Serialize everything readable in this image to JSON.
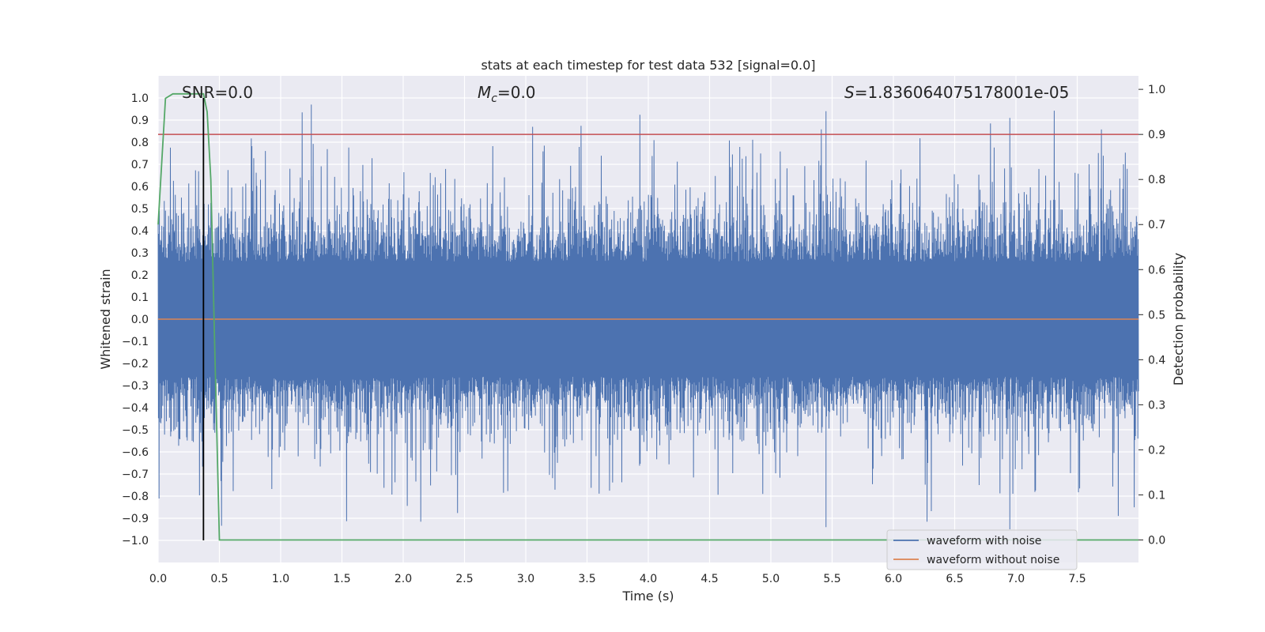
{
  "chart_data": {
    "type": "line",
    "title": "stats at each timestep for test data 532 [signal=0.0]",
    "xlabel": "Time (s)",
    "ylabel": "Whitened strain",
    "ylabel_right": "Detection probability",
    "xlim": [
      0.0,
      8.0
    ],
    "ylim": [
      -1.1,
      1.1
    ],
    "ylim_right": [
      -0.05,
      1.03
    ],
    "x_ticks": [
      "0.0",
      "0.5",
      "1.0",
      "1.5",
      "2.0",
      "2.5",
      "3.0",
      "3.5",
      "4.0",
      "4.5",
      "5.0",
      "5.5",
      "6.0",
      "6.5",
      "7.0",
      "7.5"
    ],
    "y_ticks": [
      "1.0",
      "0.9",
      "0.8",
      "0.7",
      "0.6",
      "0.5",
      "0.4",
      "0.3",
      "0.2",
      "0.1",
      "0.0",
      "−0.1",
      "−0.2",
      "−0.3",
      "−0.4",
      "−0.5",
      "−0.6",
      "−0.7",
      "−0.8",
      "−0.9",
      "−1.0"
    ],
    "y_ticks_right": [
      "1.0",
      "0.9",
      "0.8",
      "0.7",
      "0.6",
      "0.5",
      "0.4",
      "0.3",
      "0.2",
      "0.1",
      "0.0"
    ],
    "annotations": {
      "snr": "SNR=0.0",
      "mc_symbol": "M",
      "mc_sub": "c",
      "mc_value": "=0.0",
      "s_symbol": "S",
      "s_value": "=1.836064075178001e-05"
    },
    "series": [
      {
        "name": "waveform with noise",
        "axis": "left",
        "color": "#4c72b0",
        "description": "dense whitened noise, roughly within ±0.4 with spikes up to ~0.97 and down to ~-0.95",
        "noise_seed": 532,
        "amplitude_typical": 0.38,
        "max": 0.97,
        "min": -0.95
      },
      {
        "name": "waveform without noise",
        "axis": "left",
        "color": "#dd8452",
        "x": [
          0.0,
          8.0
        ],
        "y": [
          0.0,
          0.0
        ]
      },
      {
        "name": "detection probability",
        "axis": "right",
        "color": "#55a868",
        "x": [
          0.0,
          0.06,
          0.12,
          0.2,
          0.3,
          0.37,
          0.4,
          0.43,
          0.46,
          0.5,
          8.0
        ],
        "y": [
          0.7,
          0.98,
          0.99,
          0.99,
          0.99,
          0.99,
          0.95,
          0.8,
          0.45,
          0.0,
          0.0
        ]
      },
      {
        "name": "threshold",
        "axis": "right",
        "color": "#c44e52",
        "x": [
          0.0,
          8.0
        ],
        "y": [
          0.9,
          0.9
        ]
      }
    ],
    "marker_line": {
      "color": "#000000",
      "x": 0.37,
      "y_range": [
        -1.0,
        1.0
      ]
    },
    "legend": {
      "position": "lower-right",
      "entries": [
        {
          "label": "waveform with noise",
          "color": "#4c72b0"
        },
        {
          "label": "waveform without noise",
          "color": "#dd8452"
        }
      ]
    },
    "colors": {
      "background": "#eaeaf2",
      "grid": "#ffffff"
    }
  }
}
